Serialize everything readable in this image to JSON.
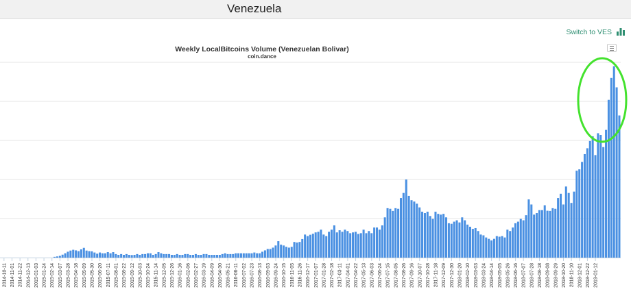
{
  "page": {
    "title": "Venezuela",
    "switch_label": "Switch to VES"
  },
  "icons": {
    "switch": "bar-chart-icon",
    "menu": "hamburger-menu-icon"
  },
  "colors": {
    "bar": "#4a90e2",
    "highlight_circle": "#44e22e",
    "link": "#2f8f72"
  },
  "chart_data": {
    "type": "bar",
    "title": "Weekly LocalBitcoins Volume (Venezuelan Bolivar)",
    "subtitle": "coin.dance",
    "xlabel": "",
    "ylabel": "",
    "grid": true,
    "y_scale_labels": "not visible",
    "ylim": [
      0,
      100
    ],
    "annotation": {
      "shape": "ellipse",
      "color": "#44e22e",
      "encircles": "2018-11-24 to 2019-01-12 peak weeks"
    },
    "tick_labels": [
      "2014-10-11",
      "2014-11-01",
      "2014-11-22",
      "2014-12-13",
      "2015-01-03",
      "2015-01-24",
      "2015-02-14",
      "2015-03-07",
      "2015-03-28",
      "2015-04-18",
      "2015-05-09",
      "2015-05-30",
      "2015-06-20",
      "2015-07-11",
      "2015-08-01",
      "2015-08-22",
      "2015-09-12",
      "2015-10-03",
      "2015-10-24",
      "2015-11-14",
      "2015-12-05",
      "2015-12-26",
      "2016-01-16",
      "2016-02-06",
      "2016-02-27",
      "2016-03-19",
      "2016-04-09",
      "2016-04-30",
      "2016-05-21",
      "2016-06-11",
      "2016-07-02",
      "2016-07-23",
      "2016-08-13",
      "2016-09-03",
      "2016-09-24",
      "2016-10-15",
      "2016-11-05",
      "2016-11-26",
      "2016-12-17",
      "2017-01-07",
      "2017-01-28",
      "2017-02-18",
      "2017-03-11",
      "2017-04-01",
      "2017-04-22",
      "2017-05-13",
      "2017-06-03",
      "2017-06-24",
      "2017-07-15",
      "2017-08-05",
      "2017-08-26",
      "2017-09-16",
      "2017-10-07",
      "2017-10-28",
      "2017-11-18",
      "2017-12-09",
      "2017-12-30",
      "2018-01-20",
      "2018-02-10",
      "2018-03-03",
      "2018-03-24",
      "2018-04-14",
      "2018-05-05",
      "2018-05-26",
      "2018-06-16",
      "2018-07-07",
      "2018-07-28",
      "2018-08-18",
      "2018-09-08",
      "2018-09-29",
      "2018-10-20",
      "2018-11-10",
      "2018-12-01",
      "2018-12-22",
      "2019-01-12"
    ],
    "first_week": "2014-10-04",
    "week_step_days": 7,
    "values": [
      0,
      0,
      0,
      0,
      0,
      0,
      0,
      0,
      0,
      0,
      0,
      0,
      0,
      0,
      0,
      0,
      0,
      0,
      0,
      0,
      0.4,
      0.6,
      0.9,
      1.5,
      2.2,
      3,
      3.6,
      4,
      3.7,
      3.3,
      4.2,
      5,
      3.6,
      3.3,
      3.2,
      2.6,
      2,
      2.6,
      2.2,
      2.2,
      2.8,
      2.2,
      2.8,
      1.8,
      1.4,
      1.8,
      1.4,
      1.8,
      1.4,
      1.3,
      1.4,
      1.8,
      1.4,
      1.8,
      1.8,
      2.2,
      2.2,
      1.4,
      1.8,
      2.8,
      2.2,
      1.8,
      1.8,
      1.8,
      1.4,
      1.4,
      1.8,
      1.4,
      1.4,
      1.8,
      1.8,
      1.4,
      1.4,
      1.8,
      1.4,
      1.4,
      1.8,
      1.8,
      1.4,
      1.4,
      1.4,
      1.4,
      1.4,
      1.8,
      2.2,
      1.8,
      1.8,
      1.8,
      2.2,
      2.2,
      2.2,
      2.2,
      2.2,
      2.2,
      2.2,
      2.6,
      2.2,
      2.2,
      3,
      3.7,
      4.4,
      4.4,
      5.1,
      6.2,
      8.4,
      6.6,
      6.2,
      5.5,
      5.1,
      5.5,
      8,
      7.7,
      8,
      9.5,
      11.8,
      11,
      11.7,
      12.2,
      12.9,
      13.2,
      14.3,
      11.8,
      11,
      13.2,
      14.3,
      16.5,
      12.9,
      14,
      13.2,
      14.3,
      13.6,
      12.5,
      12.9,
      13.2,
      12.1,
      12.5,
      14.3,
      12.5,
      13.6,
      12.5,
      15.4,
      15.4,
      14.3,
      16.5,
      20.6,
      25.3,
      25,
      23.9,
      25.3,
      25,
      30.5,
      33.1,
      40,
      31.6,
      29.4,
      28.7,
      27.6,
      25.7,
      23.5,
      22.8,
      23.5,
      21.3,
      19.8,
      23.5,
      22.4,
      22,
      22.4,
      20.6,
      17.6,
      17.3,
      18.4,
      19.1,
      18,
      20.6,
      19.1,
      16.9,
      15.8,
      14.7,
      15.1,
      13.6,
      11.8,
      11.4,
      10.3,
      9.6,
      8.8,
      9.6,
      11,
      10.7,
      11,
      10.3,
      14.3,
      13.6,
      15.4,
      17.6,
      18.4,
      19.8,
      19.1,
      21.7,
      29.8,
      27.2,
      22,
      22.8,
      24.3,
      24.3,
      26.8,
      24,
      23.9,
      25.3,
      25,
      30.5,
      32.7,
      27.2,
      36.4,
      33.1,
      28,
      33.8,
      44.5,
      45.2,
      49,
      53,
      56,
      59.7,
      62.1,
      52.5,
      63.7,
      62.8,
      56.6,
      65.4,
      80.8,
      92,
      98,
      87.2,
      72.8
    ]
  }
}
